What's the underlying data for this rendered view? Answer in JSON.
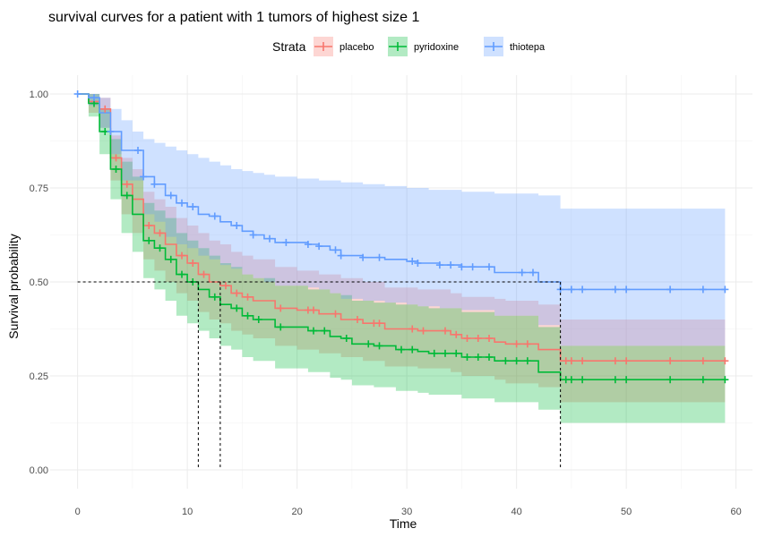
{
  "chart_data": {
    "type": "line",
    "subtype": "kaplan-meier step with confidence bands and censor marks",
    "title": "survival curves for a patient with 1 tumors of highest size 1",
    "xlabel": "Time",
    "ylabel": "Survival probability",
    "xlim": [
      -2.5,
      61.5
    ],
    "ylim": [
      -0.05,
      1.05
    ],
    "x_ticks": [
      0,
      10,
      20,
      30,
      40,
      50,
      60
    ],
    "y_ticks": [
      0.0,
      0.25,
      0.5,
      0.75,
      1.0
    ],
    "y_tick_labels": [
      "0.00",
      "0.25",
      "0.50",
      "0.75",
      "1.00"
    ],
    "grid": true,
    "legend": {
      "title": "Strata",
      "position": "top",
      "entries": [
        "placebo",
        "pyridoxine",
        "thiotepa"
      ]
    },
    "median_reference_lines": {
      "y": 0.5,
      "x": [
        11,
        13,
        44
      ]
    },
    "series": [
      {
        "name": "placebo",
        "color": "#F8766D",
        "steps": [
          [
            0,
            1.0
          ],
          [
            1,
            0.98
          ],
          [
            2,
            0.96
          ],
          [
            3,
            0.83
          ],
          [
            4,
            0.76
          ],
          [
            5,
            0.72
          ],
          [
            6,
            0.65
          ],
          [
            7,
            0.63
          ],
          [
            8,
            0.6
          ],
          [
            9,
            0.57
          ],
          [
            10,
            0.55
          ],
          [
            11,
            0.52
          ],
          [
            12,
            0.5
          ],
          [
            13,
            0.49
          ],
          [
            14,
            0.47
          ],
          [
            15,
            0.46
          ],
          [
            16,
            0.45
          ],
          [
            18,
            0.43
          ],
          [
            20,
            0.425
          ],
          [
            22,
            0.415
          ],
          [
            24,
            0.4
          ],
          [
            26,
            0.39
          ],
          [
            28,
            0.375
          ],
          [
            31,
            0.37
          ],
          [
            34,
            0.36
          ],
          [
            35,
            0.35
          ],
          [
            38,
            0.34
          ],
          [
            39,
            0.335
          ],
          [
            42,
            0.32
          ],
          [
            44,
            0.29
          ],
          [
            59,
            0.29
          ]
        ],
        "lower": [
          [
            0,
            1.0
          ],
          [
            1,
            0.95
          ],
          [
            2,
            0.91
          ],
          [
            3,
            0.77
          ],
          [
            4,
            0.68
          ],
          [
            5,
            0.63
          ],
          [
            6,
            0.56
          ],
          [
            7,
            0.53
          ],
          [
            8,
            0.5
          ],
          [
            9,
            0.47
          ],
          [
            10,
            0.45
          ],
          [
            11,
            0.42
          ],
          [
            12,
            0.4
          ],
          [
            13,
            0.39
          ],
          [
            14,
            0.37
          ],
          [
            15,
            0.36
          ],
          [
            16,
            0.35
          ],
          [
            18,
            0.33
          ],
          [
            20,
            0.32
          ],
          [
            22,
            0.31
          ],
          [
            24,
            0.3
          ],
          [
            26,
            0.29
          ],
          [
            28,
            0.275
          ],
          [
            31,
            0.27
          ],
          [
            34,
            0.26
          ],
          [
            35,
            0.25
          ],
          [
            38,
            0.24
          ],
          [
            39,
            0.23
          ],
          [
            42,
            0.22
          ],
          [
            44,
            0.18
          ],
          [
            59,
            0.18
          ]
        ],
        "upper": [
          [
            0,
            1.0
          ],
          [
            1,
            1.0
          ],
          [
            2,
            0.99
          ],
          [
            3,
            0.89
          ],
          [
            4,
            0.83
          ],
          [
            5,
            0.8
          ],
          [
            6,
            0.74
          ],
          [
            7,
            0.72
          ],
          [
            8,
            0.7
          ],
          [
            9,
            0.67
          ],
          [
            10,
            0.65
          ],
          [
            11,
            0.63
          ],
          [
            12,
            0.61
          ],
          [
            13,
            0.6
          ],
          [
            14,
            0.58
          ],
          [
            15,
            0.57
          ],
          [
            16,
            0.56
          ],
          [
            18,
            0.54
          ],
          [
            20,
            0.53
          ],
          [
            22,
            0.52
          ],
          [
            24,
            0.51
          ],
          [
            26,
            0.5
          ],
          [
            28,
            0.485
          ],
          [
            31,
            0.48
          ],
          [
            34,
            0.47
          ],
          [
            35,
            0.46
          ],
          [
            38,
            0.455
          ],
          [
            39,
            0.45
          ],
          [
            42,
            0.44
          ],
          [
            44,
            0.4
          ],
          [
            59,
            0.4
          ]
        ],
        "censor_times": [
          2.5,
          3.5,
          4.5,
          6.5,
          7.5,
          9.5,
          10.5,
          11.5,
          13.5,
          14.5,
          15.5,
          18.5,
          21,
          21.5,
          23.5,
          25.5,
          27,
          27.5,
          30.5,
          31.5,
          33.5,
          34.5,
          35.5,
          36.5,
          37.5,
          40,
          41,
          44.5,
          45,
          46,
          49,
          50,
          54,
          57,
          59
        ]
      },
      {
        "name": "pyridoxine",
        "color": "#00BA38",
        "steps": [
          [
            0,
            1.0
          ],
          [
            1,
            0.975
          ],
          [
            2,
            0.9
          ],
          [
            3,
            0.8
          ],
          [
            4,
            0.73
          ],
          [
            5,
            0.68
          ],
          [
            6,
            0.61
          ],
          [
            7,
            0.59
          ],
          [
            8,
            0.56
          ],
          [
            9,
            0.52
          ],
          [
            10,
            0.5
          ],
          [
            11,
            0.48
          ],
          [
            12,
            0.46
          ],
          [
            13,
            0.44
          ],
          [
            14,
            0.43
          ],
          [
            15,
            0.41
          ],
          [
            16,
            0.4
          ],
          [
            18,
            0.38
          ],
          [
            21,
            0.37
          ],
          [
            23,
            0.355
          ],
          [
            24,
            0.35
          ],
          [
            25,
            0.335
          ],
          [
            27,
            0.33
          ],
          [
            29,
            0.32
          ],
          [
            31,
            0.315
          ],
          [
            32,
            0.31
          ],
          [
            35,
            0.3
          ],
          [
            38,
            0.29
          ],
          [
            42,
            0.26
          ],
          [
            44,
            0.24
          ],
          [
            59,
            0.24
          ]
        ],
        "lower": [
          [
            0,
            1.0
          ],
          [
            1,
            0.94
          ],
          [
            2,
            0.84
          ],
          [
            3,
            0.72
          ],
          [
            4,
            0.63
          ],
          [
            5,
            0.58
          ],
          [
            6,
            0.51
          ],
          [
            7,
            0.48
          ],
          [
            8,
            0.45
          ],
          [
            9,
            0.41
          ],
          [
            10,
            0.39
          ],
          [
            11,
            0.37
          ],
          [
            12,
            0.35
          ],
          [
            13,
            0.33
          ],
          [
            14,
            0.32
          ],
          [
            15,
            0.3
          ],
          [
            16,
            0.29
          ],
          [
            18,
            0.27
          ],
          [
            21,
            0.26
          ],
          [
            23,
            0.245
          ],
          [
            24,
            0.24
          ],
          [
            25,
            0.225
          ],
          [
            27,
            0.22
          ],
          [
            29,
            0.21
          ],
          [
            31,
            0.205
          ],
          [
            32,
            0.2
          ],
          [
            35,
            0.19
          ],
          [
            38,
            0.18
          ],
          [
            42,
            0.16
          ],
          [
            44,
            0.125
          ],
          [
            59,
            0.125
          ]
        ],
        "upper": [
          [
            0,
            1.0
          ],
          [
            1,
            1.0
          ],
          [
            2,
            0.96
          ],
          [
            3,
            0.88
          ],
          [
            4,
            0.82
          ],
          [
            5,
            0.78
          ],
          [
            6,
            0.71
          ],
          [
            7,
            0.69
          ],
          [
            8,
            0.67
          ],
          [
            9,
            0.63
          ],
          [
            10,
            0.61
          ],
          [
            11,
            0.59
          ],
          [
            12,
            0.57
          ],
          [
            13,
            0.55
          ],
          [
            14,
            0.54
          ],
          [
            15,
            0.52
          ],
          [
            16,
            0.51
          ],
          [
            18,
            0.49
          ],
          [
            21,
            0.48
          ],
          [
            23,
            0.47
          ],
          [
            24,
            0.465
          ],
          [
            25,
            0.45
          ],
          [
            27,
            0.445
          ],
          [
            29,
            0.44
          ],
          [
            31,
            0.435
          ],
          [
            32,
            0.43
          ],
          [
            35,
            0.42
          ],
          [
            38,
            0.41
          ],
          [
            42,
            0.38
          ],
          [
            44,
            0.33
          ],
          [
            59,
            0.33
          ]
        ],
        "censor_times": [
          1.5,
          2.5,
          3.5,
          4.5,
          6.5,
          7.5,
          8.5,
          9.5,
          10.5,
          12.5,
          14.5,
          15.5,
          16.5,
          18.5,
          21.5,
          22.5,
          24.5,
          26.5,
          27.5,
          29.5,
          30.5,
          32.5,
          33.5,
          34.5,
          35.5,
          36.5,
          37.5,
          39,
          40,
          41,
          44.5,
          45,
          46,
          49,
          50,
          54,
          57,
          59
        ]
      },
      {
        "name": "thiotepa",
        "color": "#619CFF",
        "steps": [
          [
            0,
            1.0
          ],
          [
            1,
            0.99
          ],
          [
            2,
            0.95
          ],
          [
            3,
            0.9
          ],
          [
            4,
            0.85
          ],
          [
            6,
            0.78
          ],
          [
            7,
            0.76
          ],
          [
            8,
            0.73
          ],
          [
            9,
            0.71
          ],
          [
            10,
            0.7
          ],
          [
            11,
            0.68
          ],
          [
            12,
            0.675
          ],
          [
            13,
            0.66
          ],
          [
            14,
            0.65
          ],
          [
            15,
            0.635
          ],
          [
            16,
            0.625
          ],
          [
            17,
            0.615
          ],
          [
            18,
            0.605
          ],
          [
            21,
            0.6
          ],
          [
            22,
            0.595
          ],
          [
            23,
            0.585
          ],
          [
            24,
            0.57
          ],
          [
            26,
            0.565
          ],
          [
            28,
            0.56
          ],
          [
            30,
            0.555
          ],
          [
            31,
            0.55
          ],
          [
            33,
            0.545
          ],
          [
            35,
            0.54
          ],
          [
            38,
            0.525
          ],
          [
            42,
            0.5
          ],
          [
            44,
            0.48
          ],
          [
            59,
            0.48
          ]
        ],
        "lower": [
          [
            0,
            1.0
          ],
          [
            1,
            0.97
          ],
          [
            2,
            0.91
          ],
          [
            3,
            0.84
          ],
          [
            4,
            0.77
          ],
          [
            6,
            0.68
          ],
          [
            7,
            0.66
          ],
          [
            8,
            0.62
          ],
          [
            9,
            0.6
          ],
          [
            10,
            0.59
          ],
          [
            11,
            0.57
          ],
          [
            12,
            0.56
          ],
          [
            13,
            0.545
          ],
          [
            14,
            0.535
          ],
          [
            15,
            0.52
          ],
          [
            16,
            0.51
          ],
          [
            17,
            0.5
          ],
          [
            18,
            0.49
          ],
          [
            21,
            0.485
          ],
          [
            22,
            0.48
          ],
          [
            23,
            0.47
          ],
          [
            24,
            0.455
          ],
          [
            26,
            0.45
          ],
          [
            28,
            0.445
          ],
          [
            30,
            0.44
          ],
          [
            31,
            0.435
          ],
          [
            33,
            0.43
          ],
          [
            35,
            0.425
          ],
          [
            38,
            0.41
          ],
          [
            42,
            0.385
          ],
          [
            44,
            0.33
          ],
          [
            59,
            0.33
          ]
        ],
        "upper": [
          [
            0,
            1.0
          ],
          [
            1,
            1.0
          ],
          [
            2,
            0.99
          ],
          [
            3,
            0.96
          ],
          [
            4,
            0.93
          ],
          [
            5,
            0.9
          ],
          [
            6,
            0.88
          ],
          [
            7,
            0.87
          ],
          [
            8,
            0.86
          ],
          [
            9,
            0.85
          ],
          [
            10,
            0.84
          ],
          [
            11,
            0.83
          ],
          [
            12,
            0.82
          ],
          [
            13,
            0.81
          ],
          [
            14,
            0.8
          ],
          [
            15,
            0.795
          ],
          [
            16,
            0.79
          ],
          [
            17,
            0.785
          ],
          [
            18,
            0.78
          ],
          [
            20,
            0.775
          ],
          [
            22,
            0.77
          ],
          [
            24,
            0.765
          ],
          [
            26,
            0.76
          ],
          [
            28,
            0.755
          ],
          [
            30,
            0.75
          ],
          [
            32,
            0.745
          ],
          [
            35,
            0.74
          ],
          [
            38,
            0.735
          ],
          [
            42,
            0.73
          ],
          [
            44,
            0.695
          ],
          [
            59,
            0.695
          ]
        ],
        "censor_times": [
          0,
          1.5,
          3,
          5.5,
          6,
          7,
          8.5,
          9.5,
          10.5,
          12.5,
          14.5,
          16,
          17.5,
          19,
          21,
          22,
          23.5,
          24,
          26,
          27.5,
          30.5,
          31,
          33,
          34,
          35,
          36,
          37.5,
          40.5,
          41.5,
          44,
          45,
          46,
          49,
          50,
          54,
          57,
          59
        ]
      }
    ]
  }
}
